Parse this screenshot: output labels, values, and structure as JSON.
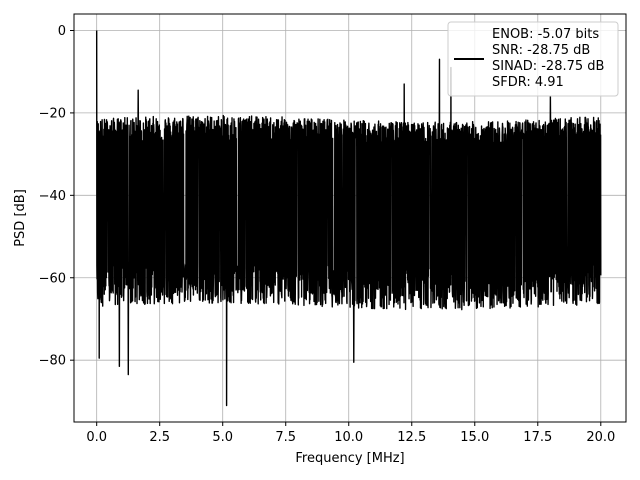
{
  "chart_data": {
    "type": "line",
    "title": "",
    "xlabel": "Frequency [MHz]",
    "ylabel": "PSD [dB]",
    "xlim": [
      -0.9,
      21.0
    ],
    "ylim": [
      -95,
      4
    ],
    "xticks": [
      0.0,
      2.5,
      5.0,
      7.5,
      10.0,
      12.5,
      15.0,
      17.5,
      20.0
    ],
    "xtick_labels": [
      "0.0",
      "2.5",
      "5.0",
      "7.5",
      "10.0",
      "12.5",
      "15.0",
      "17.5",
      "20.0"
    ],
    "yticks": [
      0,
      -20,
      -40,
      -60,
      -80
    ],
    "ytick_labels": [
      "0",
      "−20",
      "−40",
      "−60",
      "−80"
    ],
    "grid": true,
    "legend_position": "top-right",
    "series": [
      {
        "name": "",
        "color": "#000000",
        "x_range": [
          0.0,
          20.0
        ],
        "noise_floor_db": -40,
        "upper_envelope_db": -25,
        "lower_envelope_db": -62,
        "peaks": [
          {
            "x": 0.0,
            "y": 0.0
          },
          {
            "x": 1.65,
            "y": -14.5
          },
          {
            "x": 13.6,
            "y": -7.0
          },
          {
            "x": 14.05,
            "y": -9.0
          },
          {
            "x": 12.2,
            "y": -13.0
          },
          {
            "x": 18.0,
            "y": -16.0
          }
        ],
        "dips": [
          {
            "x": 5.15,
            "y": -91.0
          },
          {
            "x": 1.25,
            "y": -83.5
          },
          {
            "x": 0.9,
            "y": -81.5
          },
          {
            "x": 10.2,
            "y": -80.5
          },
          {
            "x": 0.1,
            "y": -79.5
          }
        ]
      }
    ],
    "legend_lines": [
      "ENOB: -5.07 bits",
      "SNR: -28.75 dB",
      "SINAD: -28.75 dB",
      "SFDR: 4.91"
    ]
  }
}
